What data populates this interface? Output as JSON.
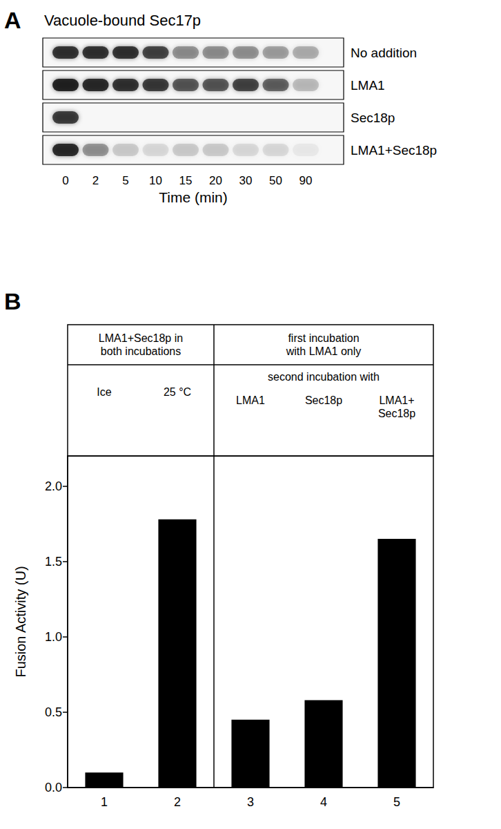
{
  "panel_a": {
    "label": "A",
    "title": "Vacuole-bound Sec17p",
    "time_labels": [
      0,
      2,
      5,
      10,
      15,
      20,
      30,
      50,
      90
    ],
    "x_label": "Time (min)",
    "rows": [
      {
        "label": "No addition",
        "band_intensity": [
          0.85,
          0.85,
          0.85,
          0.75,
          0.4,
          0.4,
          0.35,
          0.3,
          0.25
        ]
      },
      {
        "label": "LMA1",
        "band_intensity": [
          0.95,
          0.9,
          0.85,
          0.8,
          0.65,
          0.65,
          0.75,
          0.6,
          0.2
        ]
      },
      {
        "label": "Sec18p",
        "band_intensity": [
          0.8,
          0,
          0,
          0,
          0,
          0,
          0,
          0,
          0
        ]
      },
      {
        "label": "LMA1+Sec18p",
        "band_intensity": [
          0.9,
          0.35,
          0.15,
          0.1,
          0.15,
          0.15,
          0.1,
          0.1,
          0.05
        ]
      }
    ]
  },
  "chart_data": {
    "panel_label": "B",
    "type": "bar",
    "categories": [
      "1",
      "2",
      "3",
      "4",
      "5"
    ],
    "values": [
      0.1,
      1.78,
      0.45,
      0.58,
      1.65
    ],
    "color": "#000000",
    "ylabel": "Fusion Activity (U)",
    "ylim": [
      0,
      2.2
    ],
    "yticks": [
      {
        "value": 0,
        "label": "0.0"
      },
      {
        "value": 0.5,
        "label": "0.5"
      },
      {
        "value": 1,
        "label": "1.0"
      },
      {
        "value": 1.5,
        "label": "1.5"
      },
      {
        "value": 2,
        "label": "2.0"
      }
    ],
    "grid": false,
    "header": {
      "groups": [
        {
          "title": [
            "LMA1+Sec18p in",
            "both incubations"
          ],
          "conditions": [
            [
              "Ice"
            ],
            [
              "25 °C"
            ]
          ]
        },
        {
          "title": [
            "first incubation",
            "with LMA1 only"
          ],
          "subtitle": "second incubation with",
          "conditions": [
            [
              "LMA1"
            ],
            [
              "Sec18p"
            ],
            [
              "LMA1+",
              "Sec18p"
            ]
          ]
        }
      ]
    }
  }
}
